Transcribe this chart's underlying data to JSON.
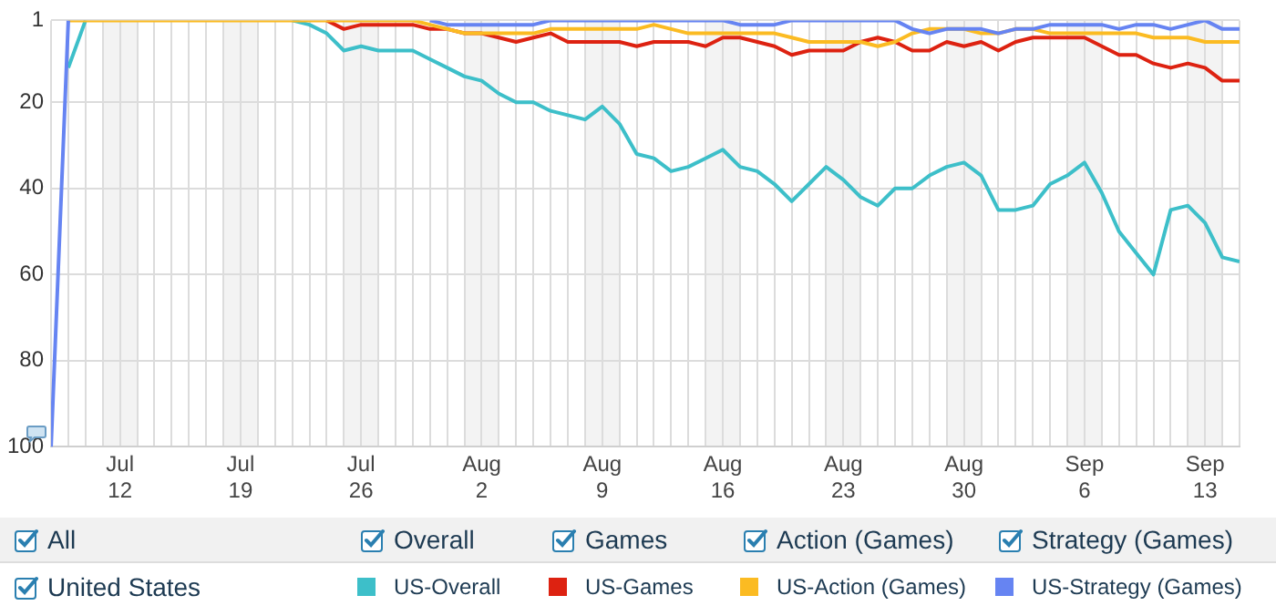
{
  "chart_data": {
    "type": "line",
    "x": [
      "--07-08",
      "--07-09",
      "--07-10",
      "--07-11",
      "--07-12",
      "--07-13",
      "--07-14",
      "--07-15",
      "--07-16",
      "--07-17",
      "--07-18",
      "--07-19",
      "--07-20",
      "--07-21",
      "--07-22",
      "--07-23",
      "--07-24",
      "--07-25",
      "--07-26",
      "--07-27",
      "--07-28",
      "--07-29",
      "--07-30",
      "--07-31",
      "--08-01",
      "--08-02",
      "--08-03",
      "--08-04",
      "--08-05",
      "--08-06",
      "--08-07",
      "--08-08",
      "--08-09",
      "--08-10",
      "--08-11",
      "--08-12",
      "--08-13",
      "--08-14",
      "--08-15",
      "--08-16",
      "--08-17",
      "--08-18",
      "--08-19",
      "--08-20",
      "--08-21",
      "--08-22",
      "--08-23",
      "--08-24",
      "--08-25",
      "--08-26",
      "--08-27",
      "--08-28",
      "--08-29",
      "--08-30",
      "--08-31",
      "--09-01",
      "--09-02",
      "--09-03",
      "--09-04",
      "--09-05",
      "--09-06",
      "--09-07",
      "--09-08",
      "--09-09",
      "--09-10",
      "--09-11",
      "--09-12",
      "--09-13",
      "--09-14",
      "--09-15"
    ],
    "series": [
      {
        "name": "US-Overall",
        "color": "#3dbfc9",
        "values": [
          null,
          12,
          1,
          null,
          null,
          null,
          null,
          null,
          null,
          null,
          null,
          null,
          null,
          null,
          1,
          2,
          4,
          8,
          7,
          8,
          8,
          8,
          10,
          12,
          14,
          15,
          18,
          20,
          20,
          22,
          23,
          24,
          21,
          25,
          32,
          33,
          36,
          35,
          33,
          31,
          35,
          36,
          39,
          43,
          39,
          35,
          38,
          42,
          44,
          40,
          40,
          37,
          35,
          34,
          37,
          45,
          45,
          44,
          39,
          37,
          34,
          41,
          50,
          55,
          60,
          45,
          44,
          48,
          56,
          57
        ]
      },
      {
        "name": "US-Games",
        "color": "#dd2211",
        "values": [
          null,
          null,
          null,
          null,
          null,
          null,
          null,
          null,
          null,
          null,
          null,
          null,
          null,
          null,
          null,
          null,
          1,
          3,
          2,
          2,
          2,
          2,
          3,
          3,
          4,
          4,
          5,
          6,
          5,
          4,
          6,
          6,
          6,
          6,
          7,
          6,
          6,
          6,
          7,
          5,
          5,
          6,
          7,
          9,
          8,
          8,
          8,
          6,
          5,
          6,
          8,
          8,
          6,
          7,
          6,
          8,
          6,
          5,
          5,
          5,
          5,
          7,
          9,
          9,
          11,
          12,
          11,
          12,
          15,
          15
        ]
      },
      {
        "name": "US-Action (Games)",
        "color": "#fbbb22",
        "values": [
          null,
          1,
          1,
          1,
          1,
          1,
          1,
          1,
          1,
          1,
          1,
          1,
          1,
          1,
          1,
          1,
          1,
          1,
          1,
          1,
          1,
          1,
          2,
          3,
          4,
          4,
          4,
          4,
          4,
          3,
          3,
          3,
          3,
          3,
          3,
          2,
          3,
          4,
          4,
          4,
          4,
          4,
          4,
          5,
          6,
          6,
          6,
          6,
          7,
          6,
          4,
          3,
          3,
          3,
          4,
          4,
          3,
          3,
          4,
          4,
          4,
          4,
          4,
          4,
          5,
          5,
          5,
          6,
          6,
          6
        ]
      },
      {
        "name": "US-Strategy (Games)",
        "color": "#6684f2",
        "values": [
          100,
          1,
          null,
          null,
          null,
          null,
          null,
          null,
          null,
          null,
          null,
          null,
          null,
          null,
          null,
          null,
          null,
          null,
          null,
          null,
          null,
          null,
          1,
          2,
          2,
          2,
          2,
          2,
          2,
          1,
          1,
          1,
          1,
          1,
          1,
          1,
          1,
          1,
          1,
          1,
          2,
          2,
          2,
          1,
          1,
          1,
          1,
          1,
          1,
          1,
          3,
          4,
          3,
          3,
          3,
          4,
          3,
          3,
          2,
          2,
          2,
          2,
          3,
          2,
          2,
          3,
          2,
          1,
          3,
          3
        ]
      }
    ],
    "xlim": [
      "--07-08",
      "--09-15"
    ],
    "xticks": [
      {
        "value": "--07-12",
        "label": "Jul 12"
      },
      {
        "value": "--07-19",
        "label": "Jul 19"
      },
      {
        "value": "--07-26",
        "label": "Jul 26"
      },
      {
        "value": "--08-02",
        "label": "Aug 2"
      },
      {
        "value": "--08-09",
        "label": "Aug 9"
      },
      {
        "value": "--08-16",
        "label": "Aug 16"
      },
      {
        "value": "--08-23",
        "label": "Aug 23"
      },
      {
        "value": "--08-30",
        "label": "Aug 30"
      },
      {
        "value": "--09-06",
        "label": "Sep 6"
      },
      {
        "value": "--09-13",
        "label": "Sep 13"
      }
    ],
    "ylim": [
      100,
      1
    ],
    "yticks": [
      1,
      20,
      40,
      60,
      80,
      100
    ],
    "bands": [
      {
        "axis": "x",
        "from": "--07-11",
        "to": "--07-13",
        "color": "#f3f3f3"
      },
      {
        "axis": "x",
        "from": "--07-18",
        "to": "--07-20",
        "color": "#f3f3f3"
      },
      {
        "axis": "x",
        "from": "--07-25",
        "to": "--07-27",
        "color": "#f3f3f3"
      },
      {
        "axis": "x",
        "from": "--08-01",
        "to": "--08-03",
        "color": "#f3f3f3"
      },
      {
        "axis": "x",
        "from": "--08-08",
        "to": "--08-10",
        "color": "#f3f3f3"
      },
      {
        "axis": "x",
        "from": "--08-15",
        "to": "--08-17",
        "color": "#f3f3f3"
      },
      {
        "axis": "x",
        "from": "--08-22",
        "to": "--08-24",
        "color": "#f3f3f3"
      },
      {
        "axis": "x",
        "from": "--08-29",
        "to": "--08-31",
        "color": "#f3f3f3"
      },
      {
        "axis": "x",
        "from": "--09-05",
        "to": "--09-07",
        "color": "#f3f3f3"
      },
      {
        "axis": "x",
        "from": "--09-12",
        "to": "--09-14",
        "color": "#f3f3f3"
      }
    ],
    "grid": true,
    "legend": "bottom",
    "marker": "none",
    "line_style": "solid",
    "annotations": [
      "All",
      "Overall",
      "Games",
      "Action (Games)",
      "Strategy (Games)",
      "United States"
    ]
  }
}
